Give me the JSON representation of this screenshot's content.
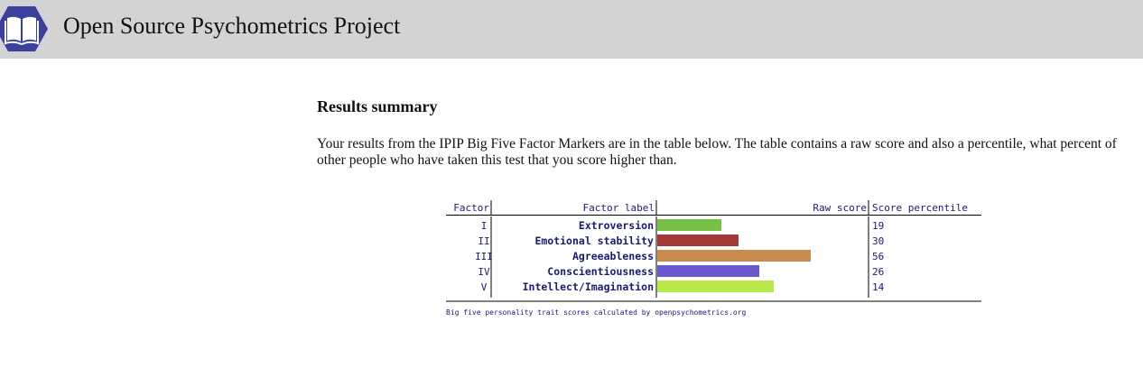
{
  "header": {
    "title": "Open Source Psychometrics Project",
    "background": "#d3d3d3",
    "logo_icon": "book-hexagon-icon",
    "logo_color": "#3b3f9e"
  },
  "results": {
    "heading": "Results summary",
    "intro": "Your results from the IPIP Big Five Factor Markers are in the table below. The table contains a raw score and also a percentile, what percent of other people who have taken this test that you score higher than."
  },
  "table": {
    "columns": [
      "Factor",
      "Factor label",
      "Raw score",
      "Score percentile"
    ],
    "rows": [
      {
        "factor": "I",
        "label": "Extroversion",
        "percentile": "19",
        "bar_color": "#77c043",
        "bar_fraction": 0.31
      },
      {
        "factor": "II",
        "label": "Emotional stability",
        "percentile": "30",
        "bar_color": "#a33a3a",
        "bar_fraction": 0.39
      },
      {
        "factor": "III",
        "label": "Agreeableness",
        "percentile": "56",
        "bar_color": "#c88a4d",
        "bar_fraction": 0.74
      },
      {
        "factor": "IV",
        "label": "Conscientiousness",
        "percentile": "26",
        "bar_color": "#6a5acd",
        "bar_fraction": 0.49
      },
      {
        "factor": "V",
        "label": "Intellect/Imagination",
        "percentile": "14",
        "bar_color": "#b6e84c",
        "bar_fraction": 0.56
      }
    ],
    "footer": "Big five personality trait scores calculated by openpsychometrics.org",
    "text_color": "#1a1a6e"
  }
}
